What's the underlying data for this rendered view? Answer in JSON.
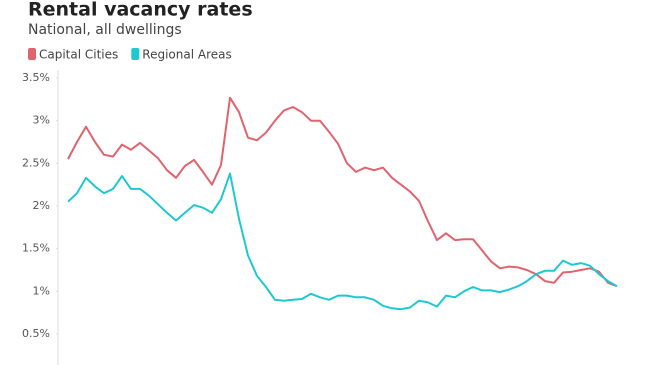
{
  "chart_data": {
    "type": "line",
    "title": "Rental vacancy rates",
    "subtitle": "National, all dwellings",
    "categories": [
      null,
      null,
      null,
      null,
      null,
      null,
      null,
      null,
      null,
      null,
      null,
      null,
      null,
      null,
      null,
      null,
      null,
      null,
      null,
      null,
      null,
      null,
      null,
      null,
      null,
      null,
      null,
      null,
      null,
      null,
      null,
      null,
      null,
      null,
      null,
      null,
      null,
      null,
      null,
      null,
      null,
      null,
      null,
      null,
      null,
      null,
      null,
      null,
      null,
      null,
      null,
      null,
      null,
      null,
      null,
      null,
      null,
      null,
      null,
      null,
      null,
      null
    ],
    "series": [
      {
        "name": "Capital Cities",
        "color": "#e0636e",
        "values": [
          2.55,
          2.75,
          2.93,
          2.75,
          2.6,
          2.58,
          2.72,
          2.66,
          2.74,
          2.65,
          2.56,
          2.42,
          2.33,
          2.47,
          2.54,
          2.4,
          2.25,
          2.48,
          3.27,
          3.1,
          2.8,
          2.77,
          2.86,
          3.0,
          3.12,
          3.16,
          3.1,
          3.0,
          3.0,
          2.87,
          2.73,
          2.5,
          2.4,
          2.45,
          2.42,
          2.45,
          2.33,
          2.25,
          2.17,
          2.06,
          1.82,
          1.6,
          1.68,
          1.6,
          1.61,
          1.61,
          1.48,
          1.35,
          1.27,
          1.29,
          1.28,
          1.25,
          1.2,
          1.12,
          1.1,
          1.22,
          1.23,
          1.25,
          1.27,
          1.23,
          1.1,
          1.06
        ]
      },
      {
        "name": "Regional Areas",
        "color": "#1fc8d0",
        "values": [
          2.05,
          2.15,
          2.33,
          2.23,
          2.15,
          2.2,
          2.35,
          2.2,
          2.2,
          2.12,
          2.02,
          1.92,
          1.83,
          1.92,
          2.01,
          1.98,
          1.92,
          2.08,
          2.38,
          1.85,
          1.42,
          1.18,
          1.05,
          0.9,
          0.89,
          0.9,
          0.91,
          0.97,
          0.93,
          0.9,
          0.95,
          0.95,
          0.93,
          0.93,
          0.9,
          0.83,
          0.8,
          0.79,
          0.81,
          0.89,
          0.87,
          0.82,
          0.95,
          0.93,
          1.0,
          1.05,
          1.01,
          1.01,
          0.99,
          1.02,
          1.06,
          1.12,
          1.2,
          1.24,
          1.24,
          1.36,
          1.31,
          1.33,
          1.3,
          1.2,
          1.12,
          1.06
        ]
      }
    ],
    "ylim": [
      0.3,
      3.6
    ],
    "yticks": [
      {
        "value": 0.5,
        "label": "0.5%"
      },
      {
        "value": 1,
        "label": "1%"
      },
      {
        "value": 1.5,
        "label": "1.5%"
      },
      {
        "value": 2,
        "label": "2%"
      },
      {
        "value": 2.5,
        "label": "2.5%"
      },
      {
        "value": 3,
        "label": "3%"
      },
      {
        "value": 3.5,
        "label": "3.5%"
      }
    ],
    "grid": false
  }
}
